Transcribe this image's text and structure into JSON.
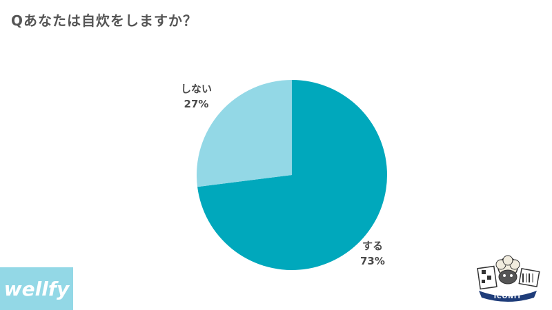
{
  "title": "Qあなたは自炊をしますか？",
  "chart_data": {
    "type": "pie",
    "title": "Qあなたは自炊をしますか？",
    "slices": [
      {
        "label": "する",
        "value": 73,
        "value_label": "73%",
        "color": "#00a8bc"
      },
      {
        "label": "しない",
        "value": 27,
        "value_label": "27%",
        "color": "#93d8e6"
      }
    ],
    "start": "12 o'clock",
    "direction": "clockwise"
  },
  "brand": {
    "logo_text": "wellfy",
    "logo_color": "#93d8e6"
  },
  "badge": {
    "text": "ICONIT",
    "icon": "sheep-mascot-icon"
  }
}
